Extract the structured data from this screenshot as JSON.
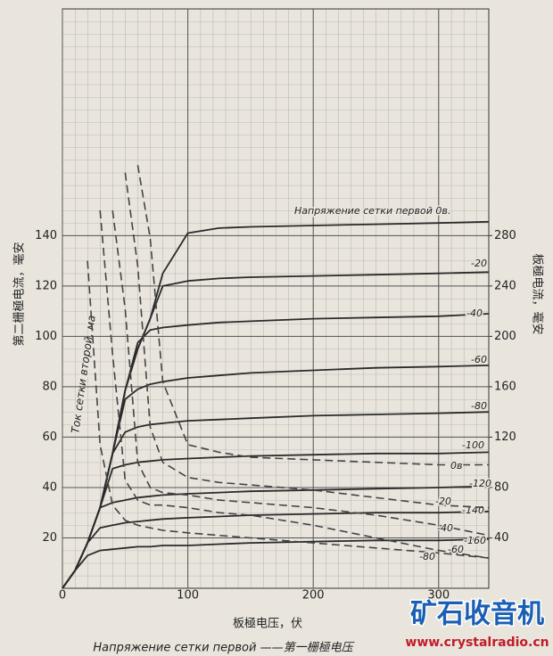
{
  "chart_data": {
    "type": "line",
    "x_label": "板極电压，伏",
    "y_label": "第二栅極电流，毫安",
    "y2_label": "板極电流，毫安",
    "caption": "Напряжение сетки первой ——第一栅極电压",
    "annotation": "Ток сетки второй, ма",
    "watermark": [
      "矿石收音机",
      "www.crystalradio.cn"
    ],
    "x": [
      0,
      10,
      20,
      30,
      40,
      50,
      60,
      70,
      80,
      100,
      125,
      150,
      200,
      250,
      300,
      340
    ],
    "xlim": [
      0,
      340
    ],
    "xticks": [
      0,
      100,
      200,
      300
    ],
    "ylim": [
      0,
      230
    ],
    "yticks": [
      20,
      40,
      60,
      80,
      100,
      120,
      140
    ],
    "y2lim": [
      0,
      460
    ],
    "y2ticks": [
      40,
      80,
      120,
      160,
      200,
      240,
      280
    ],
    "grid": true,
    "series": [
      {
        "name": "Напряжение сетки первой 0в.",
        "axis": "y2",
        "color": "#2a2a2a",
        "style": "solid",
        "values": [
          0,
          14,
          36,
          64,
          107,
          157,
          190,
          214,
          250,
          282,
          286,
          287,
          288,
          289,
          290,
          291
        ]
      },
      {
        "name": "-20",
        "axis": "y2",
        "color": "#2a2a2a",
        "style": "solid",
        "values": [
          0,
          14,
          36,
          64,
          107,
          157,
          190,
          214,
          240,
          244,
          246,
          247,
          248,
          249,
          250,
          251
        ]
      },
      {
        "name": "-40",
        "axis": "y2",
        "color": "#2a2a2a",
        "style": "solid",
        "values": [
          0,
          14,
          36,
          64,
          107,
          157,
          195,
          205,
          207,
          209,
          211,
          212,
          214,
          215,
          216,
          218
        ]
      },
      {
        "name": "-60",
        "axis": "y2",
        "color": "#2a2a2a",
        "style": "solid",
        "values": [
          0,
          14,
          36,
          64,
          107,
          150,
          158,
          162,
          164,
          167,
          169,
          171,
          173,
          175,
          176,
          177
        ]
      },
      {
        "name": "-80",
        "axis": "y2",
        "color": "#2a2a2a",
        "style": "solid",
        "values": [
          0,
          14,
          36,
          64,
          107,
          124,
          128,
          130,
          131,
          133,
          134,
          135,
          137,
          138,
          139,
          140
        ]
      },
      {
        "name": "-100",
        "axis": "y2",
        "color": "#2a2a2a",
        "style": "solid",
        "values": [
          0,
          14,
          36,
          64,
          95,
          98,
          100,
          101,
          102,
          103,
          104,
          105,
          106,
          107,
          107,
          108
        ]
      },
      {
        "name": "-120",
        "axis": "y2",
        "color": "#2a2a2a",
        "style": "solid",
        "values": [
          0,
          14,
          36,
          64,
          68,
          70,
          72,
          73,
          74,
          75,
          76,
          77,
          78,
          79,
          80,
          81
        ]
      },
      {
        "name": "-140",
        "axis": "y2",
        "color": "#2a2a2a",
        "style": "solid",
        "values": [
          0,
          14,
          36,
          48,
          50,
          52,
          53,
          54,
          55,
          56,
          57,
          58,
          59,
          60,
          60,
          61
        ]
      },
      {
        "name": "-160",
        "axis": "y2",
        "color": "#2a2a2a",
        "style": "solid",
        "values": [
          0,
          14,
          26,
          30,
          31,
          32,
          33,
          33,
          34,
          34,
          35,
          36,
          37,
          38,
          38,
          39
        ]
      },
      {
        "name": "0в",
        "axis": "y",
        "color": "#444444",
        "style": "dashed",
        "values": [
          null,
          null,
          null,
          null,
          null,
          null,
          168,
          139,
          82,
          57,
          54,
          52,
          51,
          50,
          49,
          49
        ]
      },
      {
        "name": "-20",
        "axis": "y",
        "color": "#444444",
        "style": "dashed",
        "values": [
          null,
          null,
          null,
          null,
          null,
          165,
          128,
          64,
          50,
          44,
          42,
          41,
          39,
          36,
          33,
          32
        ]
      },
      {
        "name": "-40",
        "axis": "y",
        "color": "#444444",
        "style": "dashed",
        "values": [
          null,
          null,
          null,
          null,
          150,
          111,
          50,
          40,
          38,
          37,
          35,
          34,
          32,
          29,
          25,
          21
        ]
      },
      {
        "name": "-60",
        "axis": "y",
        "color": "#444444",
        "style": "dashed",
        "values": [
          null,
          null,
          null,
          150,
          93,
          43,
          35,
          33,
          33,
          32,
          30,
          29,
          25,
          20,
          15,
          12
        ]
      },
      {
        "name": "-80",
        "axis": "y",
        "color": "#444444",
        "style": "dashed",
        "values": [
          null,
          null,
          130,
          57,
          33,
          27,
          25,
          24,
          23,
          22,
          21,
          20,
          18,
          16,
          14,
          12
        ]
      }
    ]
  }
}
